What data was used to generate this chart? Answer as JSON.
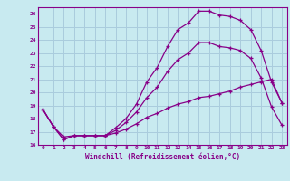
{
  "xlabel": "Windchill (Refroidissement éolien,°C)",
  "bg_color": "#c8eaf0",
  "grid_color": "#aaccdd",
  "line_color": "#880088",
  "xlim": [
    -0.5,
    23.5
  ],
  "ylim": [
    16,
    26.5
  ],
  "xticks": [
    0,
    1,
    2,
    3,
    4,
    5,
    6,
    7,
    8,
    9,
    10,
    11,
    12,
    13,
    14,
    15,
    16,
    17,
    18,
    19,
    20,
    21,
    22,
    23
  ],
  "yticks": [
    16,
    17,
    18,
    19,
    20,
    21,
    22,
    23,
    24,
    25,
    26
  ],
  "line1_x": [
    0,
    1,
    2,
    3,
    4,
    5,
    6,
    7,
    8,
    9,
    10,
    11,
    12,
    13,
    14,
    15,
    16,
    17,
    18,
    19,
    20,
    21,
    22,
    23
  ],
  "line1_y": [
    18.7,
    17.4,
    16.6,
    16.7,
    16.7,
    16.7,
    16.7,
    17.3,
    18.0,
    19.1,
    20.8,
    21.9,
    23.5,
    24.8,
    25.3,
    26.2,
    26.2,
    25.9,
    25.8,
    25.5,
    24.8,
    23.2,
    20.8,
    19.2
  ],
  "line2_x": [
    0,
    1,
    2,
    3,
    4,
    5,
    6,
    7,
    8,
    9,
    10,
    11,
    12,
    13,
    14,
    15,
    16,
    17,
    18,
    19,
    20,
    21,
    22,
    23
  ],
  "line2_y": [
    18.7,
    17.4,
    16.4,
    16.7,
    16.7,
    16.7,
    16.7,
    17.1,
    17.7,
    18.5,
    19.6,
    20.4,
    21.6,
    22.5,
    23.0,
    23.8,
    23.8,
    23.5,
    23.4,
    23.2,
    22.6,
    21.1,
    18.9,
    17.5
  ],
  "line3_x": [
    0,
    1,
    2,
    3,
    4,
    5,
    6,
    7,
    8,
    9,
    10,
    11,
    12,
    13,
    14,
    15,
    16,
    17,
    18,
    19,
    20,
    21,
    22,
    23
  ],
  "line3_y": [
    18.7,
    17.4,
    16.4,
    16.7,
    16.7,
    16.7,
    16.7,
    16.9,
    17.2,
    17.6,
    18.1,
    18.4,
    18.8,
    19.1,
    19.3,
    19.6,
    19.7,
    19.9,
    20.1,
    20.4,
    20.6,
    20.8,
    21.0,
    19.2
  ]
}
